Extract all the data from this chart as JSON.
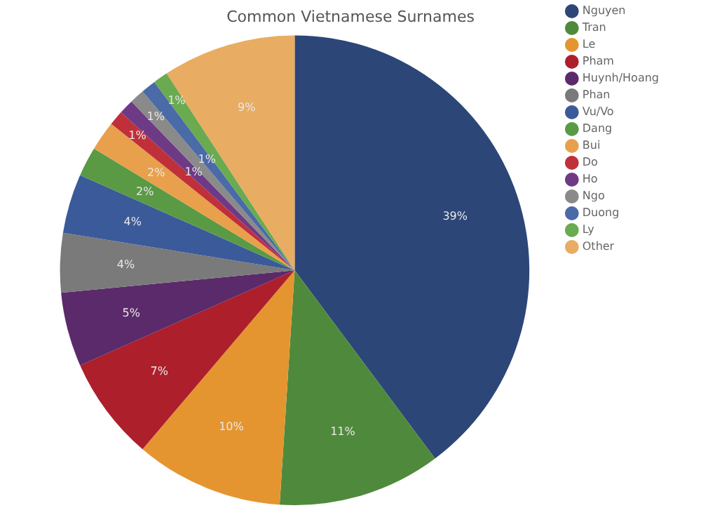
{
  "chart_data": {
    "type": "pie",
    "title": "Common Vietnamese Surnames",
    "categories": [
      "Nguyen",
      "Tran",
      "Le",
      "Pham",
      "Huynh/Hoang",
      "Phan",
      "Vu/Vo",
      "Dang",
      "Bui",
      "Do",
      "Ho",
      "Ngo",
      "Duong",
      "Ly",
      "Other"
    ],
    "values": [
      39,
      11,
      10,
      7,
      5,
      4,
      4,
      2,
      2,
      1,
      1,
      1,
      1,
      1,
      9
    ],
    "value_labels": [
      "39%",
      "11%",
      "10%",
      "7%",
      "5%",
      "4%",
      "4%",
      "2%",
      "2%",
      "1%",
      "1%",
      "1%",
      "1%",
      "1%",
      "9%"
    ],
    "colors": [
      "#2c4677",
      "#4f8a3c",
      "#e5952f",
      "#ad1f2b",
      "#5b2a6b",
      "#7a7a7a",
      "#3b5a9a",
      "#5a9a45",
      "#e9a04c",
      "#c0303a",
      "#6e3a86",
      "#8a8a8a",
      "#4a6aa8",
      "#6aaa50",
      "#e8ac62"
    ],
    "legend": "right"
  }
}
